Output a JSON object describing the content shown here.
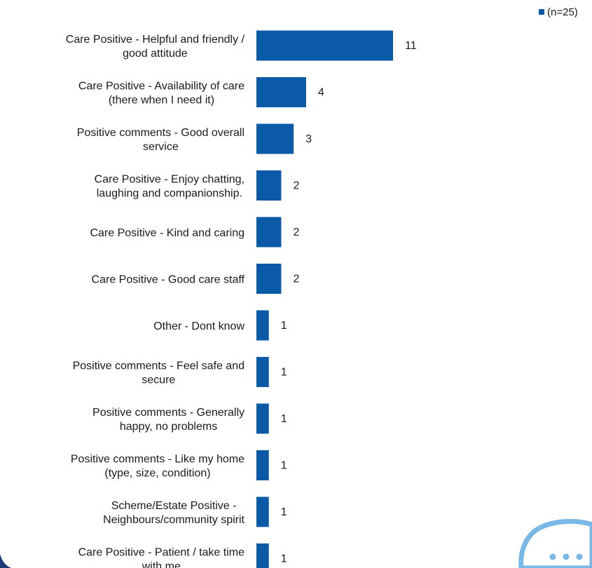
{
  "chart_data": {
    "type": "bar",
    "orientation": "horizontal",
    "categories": [
      [
        "Care Positive - Helpful and friendly /",
        "good attitude"
      ],
      [
        "Care Positive - Availability of care",
        "(there when I need it)"
      ],
      [
        "Positive comments - Good overall",
        "service"
      ],
      [
        "Care Positive - Enjoy chatting,",
        "laughing and companionship."
      ],
      [
        "Care Positive - Kind and caring"
      ],
      [
        "Care Positive - Good care staff"
      ],
      [
        "Other - Dont know"
      ],
      [
        "Positive comments - Feel safe and",
        "secure"
      ],
      [
        "Positive comments - Generally",
        "happy, no problems"
      ],
      [
        "Positive comments - Like my home",
        "(type, size, condition)"
      ],
      [
        "Scheme/Estate Positive -",
        "Neighbours/community spirit"
      ],
      [
        "Care Positive - Patient / take time",
        "with me"
      ]
    ],
    "series": [
      {
        "name": "(n=25)",
        "values": [
          11,
          4,
          3,
          2,
          2,
          2,
          1,
          1,
          1,
          1,
          1,
          1
        ]
      }
    ],
    "data_labels": true,
    "legend_position": "top-right",
    "grid": false,
    "colors": {
      "bar": "#0a5aa8",
      "legend_marker": "#0a5aa8",
      "chat_icon": "#7ab8e8"
    }
  }
}
